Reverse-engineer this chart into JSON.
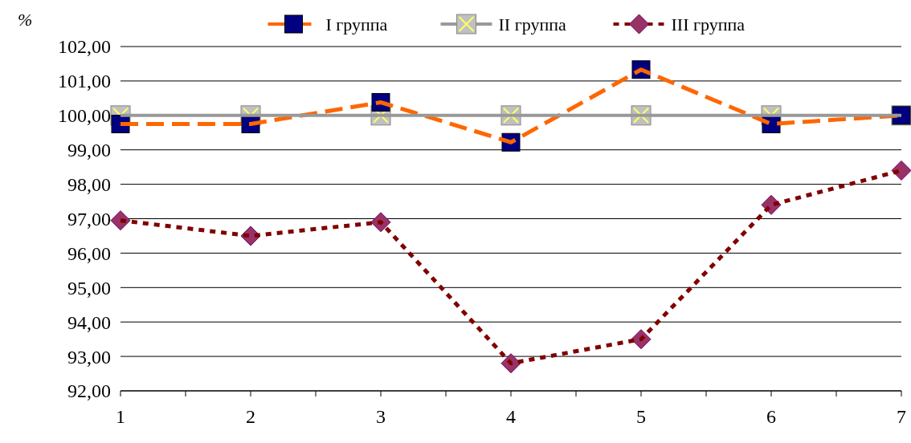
{
  "chart_data": {
    "type": "line",
    "ylabel": "%",
    "x": [
      1,
      2,
      3,
      4,
      5,
      6,
      7
    ],
    "xlim": [
      1,
      7
    ],
    "xticks": [
      1,
      {
        "value": 1.5,
        "label": null
      },
      2,
      {
        "value": 2.5,
        "label": null
      },
      3,
      {
        "value": 3.5,
        "label": null
      },
      4,
      {
        "value": 4.5,
        "label": null
      },
      5,
      {
        "value": 5.5,
        "label": null
      },
      6,
      {
        "value": 6.5,
        "label": null
      },
      7
    ],
    "ylim": [
      92,
      102
    ],
    "yticks": [
      {
        "value": 92,
        "label": "92,00"
      },
      {
        "value": 93,
        "label": "93,00"
      },
      {
        "value": 94,
        "label": "94,00"
      },
      {
        "value": 95,
        "label": "95,00"
      },
      {
        "value": 96,
        "label": "96,00"
      },
      {
        "value": 97,
        "label": "97,00"
      },
      {
        "value": 98,
        "label": "98,00"
      },
      {
        "value": 99,
        "label": "99,00"
      },
      {
        "value": 100,
        "label": "100,00"
      },
      {
        "value": 101,
        "label": "101,00"
      },
      {
        "value": 102,
        "label": "102,00"
      }
    ],
    "grid": "y",
    "legend": "top",
    "series": [
      {
        "name": "I группа",
        "color": "#ff6600",
        "marker": "square",
        "line_style": "dashed",
        "values": [
          99.75,
          99.75,
          100.38,
          99.22,
          101.33,
          99.75,
          100.0
        ]
      },
      {
        "name": "II группа",
        "color": "#999999",
        "marker": "square",
        "line_style": "solid",
        "values": [
          100,
          100,
          100,
          100,
          100,
          100,
          100
        ]
      },
      {
        "name": "III группа",
        "color": "#800000",
        "marker": "diamond",
        "line_style": "dotted",
        "values": [
          96.95,
          96.5,
          96.9,
          92.8,
          93.5,
          97.4,
          98.4
        ]
      }
    ]
  }
}
